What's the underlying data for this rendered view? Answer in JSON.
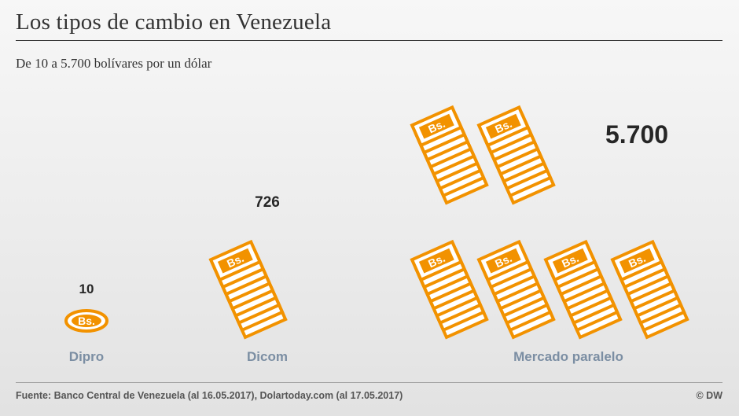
{
  "title": "Los tipos de cambio en Venezuela",
  "subtitle": "De 10 a 5.700 bolívares por un dólar",
  "source": "Fuente: Banco Central de Venezuela (al 16.05.2017), Dolartoday.com (al 17.05.2017)",
  "credit": "© DW",
  "icon_label": "Bs.",
  "colors": {
    "orange": "#f29200",
    "category_label": "#7b8ea3",
    "value_label": "#262626"
  },
  "chart_data": {
    "type": "pictogram",
    "categories": [
      "Dipro",
      "Dicom",
      "Mercado paralelo"
    ],
    "values": [
      10,
      726,
      5700
    ],
    "value_labels": [
      "10",
      "726",
      "5.700"
    ],
    "unit": "bolívares por un dólar"
  }
}
